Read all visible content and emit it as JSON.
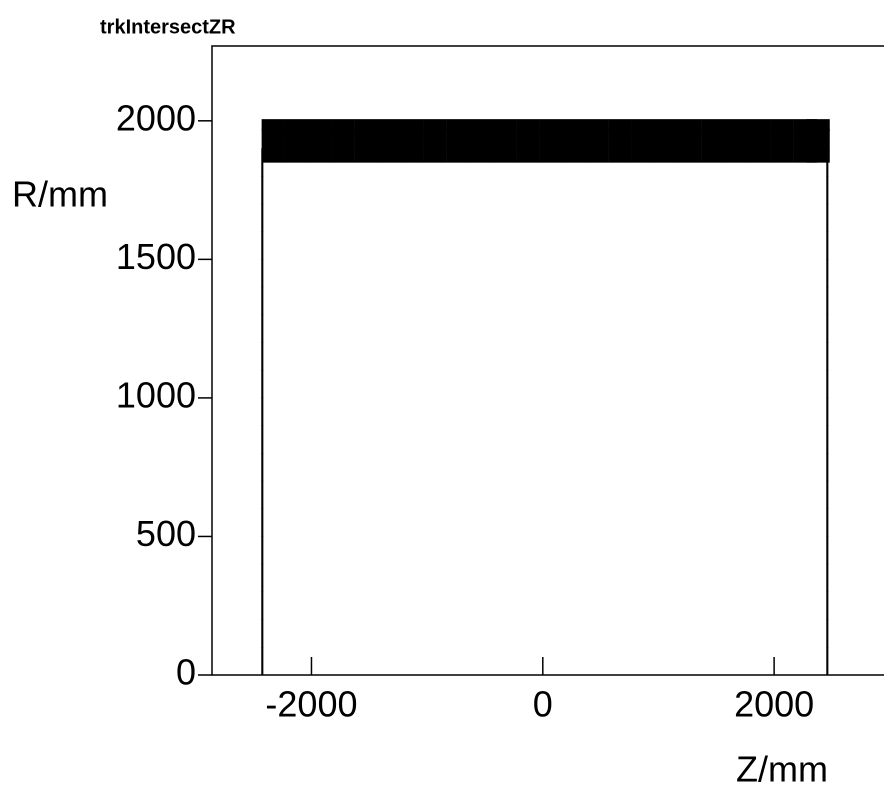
{
  "chart_data": {
    "type": "scatter",
    "title": "trkIntersectZR",
    "xlabel": "Z/mm",
    "ylabel": "R/mm",
    "xlim": [
      -2860,
      2950
    ],
    "ylim": [
      0,
      2270
    ],
    "xticks": [
      -2000,
      0,
      2000
    ],
    "yticks": [
      0,
      500,
      1000,
      1500,
      2000
    ],
    "series": [
      {
        "color": "#000000",
        "x": [
          -2330,
          -2130,
          -1930,
          -1730,
          -1530,
          -1330,
          -1130,
          -930,
          -730,
          -530,
          -330,
          -130,
          70,
          270,
          470,
          670,
          870,
          1070,
          1270,
          1470,
          1670,
          1870,
          2070,
          2270,
          2380,
          -2330,
          -2130,
          -1930,
          -1730,
          -1530,
          -1330,
          -1130,
          -930,
          -730,
          -530,
          -330,
          -130,
          70,
          270,
          470,
          670,
          870,
          1070,
          1270,
          1470,
          1670,
          1870,
          2070,
          2270,
          2380,
          -2330,
          -2130,
          -1930,
          -1730,
          -1530,
          -1330,
          -1130,
          -930,
          -730,
          -530,
          -330,
          -130,
          70,
          270,
          470,
          670,
          870,
          1070,
          1270,
          1470,
          1670,
          1870,
          2070,
          2270,
          2380,
          -2330,
          -2130,
          -1930,
          -1730,
          -1530,
          -1330,
          -1130,
          -930,
          -730,
          -530,
          -330,
          -130,
          70,
          270,
          470,
          670,
          870,
          1070,
          1270,
          1470,
          1670,
          1870,
          2070,
          2270,
          2380
        ],
        "y": [
          1870,
          1870,
          1870,
          1870,
          1870,
          1870,
          1870,
          1870,
          1870,
          1870,
          1870,
          1870,
          1870,
          1870,
          1870,
          1870,
          1870,
          1870,
          1870,
          1870,
          1870,
          1870,
          1870,
          1870,
          1870,
          1910,
          1910,
          1910,
          1910,
          1910,
          1910,
          1910,
          1910,
          1910,
          1910,
          1910,
          1910,
          1910,
          1910,
          1910,
          1910,
          1910,
          1910,
          1910,
          1910,
          1910,
          1910,
          1910,
          1910,
          1910,
          1950,
          1950,
          1950,
          1950,
          1950,
          1950,
          1950,
          1950,
          1950,
          1950,
          1950,
          1950,
          1950,
          1950,
          1950,
          1950,
          1950,
          1950,
          1950,
          1950,
          1950,
          1950,
          1950,
          1950,
          1950,
          1985,
          1985,
          1985,
          1985,
          1985,
          1985,
          1985,
          1985,
          1985,
          1985,
          1985,
          1985,
          1985,
          1985,
          1985,
          1985,
          1985,
          1985,
          1985,
          1985,
          1985,
          1985,
          1985,
          1985,
          1985
        ]
      },
      {
        "color": "#000000",
        "x": [
          -2425,
          -2425,
          -2425,
          -2425,
          -2425,
          -2425,
          -2425,
          -2425,
          -2425,
          -2425,
          -2425,
          -2425,
          -2425,
          -2425,
          -2425,
          -2425,
          -2425,
          -2425,
          -2425,
          2460,
          2460,
          2460,
          2460,
          2460,
          2460,
          2460,
          2460,
          2460,
          2460,
          2460,
          2460,
          2460,
          2460,
          2460,
          2460,
          2460,
          2460,
          2460
        ],
        "y": [
          50,
          150,
          250,
          350,
          450,
          550,
          650,
          750,
          850,
          950,
          1050,
          1150,
          1250,
          1350,
          1450,
          1550,
          1650,
          1750,
          1850,
          50,
          150,
          250,
          350,
          450,
          550,
          650,
          750,
          850,
          950,
          1050,
          1150,
          1250,
          1350,
          1450,
          1550,
          1650,
          1750,
          1850
        ]
      }
    ]
  }
}
